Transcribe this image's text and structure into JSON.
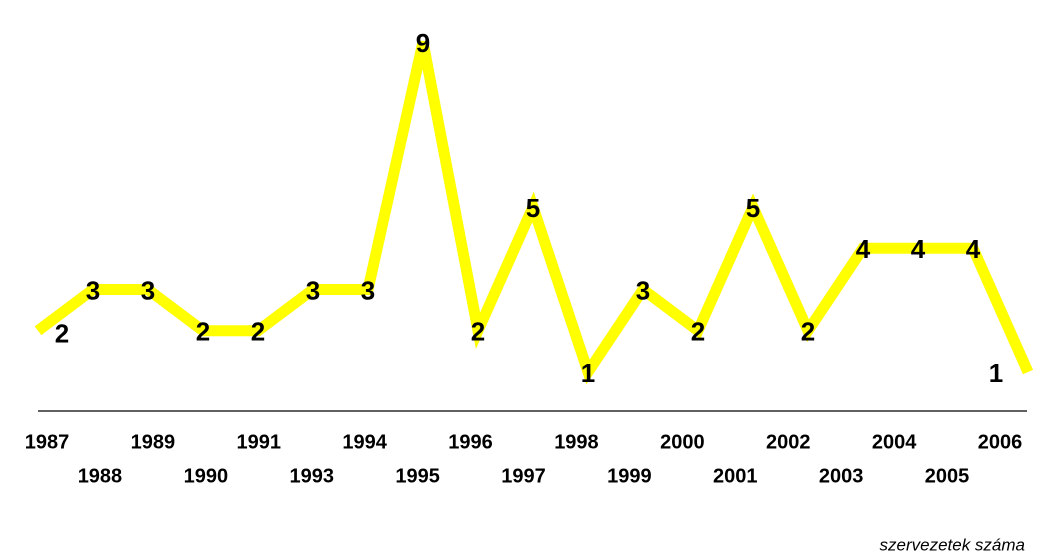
{
  "chart_data": {
    "type": "line",
    "categories": [
      "1987",
      "1988",
      "1989",
      "1990",
      "1991",
      "1993",
      "1994",
      "1995",
      "1996",
      "1997",
      "1998",
      "1999",
      "2000",
      "2001",
      "2002",
      "2003",
      "2004",
      "2005",
      "2006"
    ],
    "values": [
      2,
      3,
      3,
      2,
      2,
      3,
      3,
      9,
      2,
      5,
      1,
      3,
      2,
      5,
      2,
      4,
      4,
      4,
      1
    ],
    "color": "#ffff00",
    "caption": "szervezetek száma"
  }
}
